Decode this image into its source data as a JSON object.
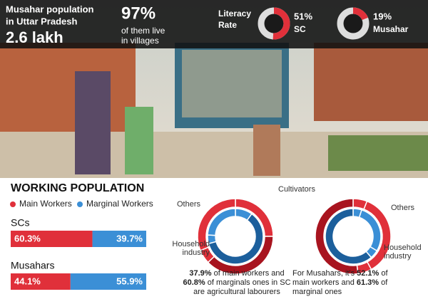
{
  "header": {
    "population_label": [
      "Musahar population",
      "in Uttar Pradesh"
    ],
    "population_value": "2.6 lakh",
    "villages_value": "97%",
    "villages_label": [
      "of them live",
      "in villages"
    ],
    "literacy_label": [
      "Literacy",
      "Rate"
    ]
  },
  "chart_data": [
    {
      "type": "donut",
      "categories": [
        "SC"
      ],
      "values": [
        51
      ],
      "value_labels": [
        "51%"
      ],
      "color": "#e0303a"
    },
    {
      "type": "donut",
      "categories": [
        "Musahar"
      ],
      "values": [
        19
      ],
      "value_labels": [
        "19%"
      ],
      "color": "#e0303a"
    },
    {
      "type": "stacked-bar",
      "title": "WORKING POPULATION",
      "categories": [
        "SCs",
        "Musahars"
      ],
      "xlim": [
        0,
        100
      ],
      "series": [
        {
          "name": "Main Workers",
          "color": "#e0303a",
          "values": [
            60.3,
            44.1
          ],
          "value_labels": [
            "60.3%",
            "44.1%"
          ]
        },
        {
          "name": "Marginal Workers",
          "color": "#3b8fd6",
          "values": [
            39.7,
            55.9
          ],
          "value_labels": [
            "39.7%",
            "55.9%"
          ]
        }
      ]
    },
    {
      "type": "nested-donut",
      "categories": [
        "Cultivators",
        null,
        "Household industry",
        "Others"
      ],
      "series": [
        {
          "color": "#e0303a",
          "values": [
            25,
            37.9,
            6,
            31.1
          ],
          "value_labels": [
            null,
            "37.9%",
            null,
            null
          ]
        },
        {
          "color": "#3b8fd6",
          "values": [
            10,
            60.8,
            5,
            24.2
          ],
          "value_labels": [
            null,
            "60.8%",
            null,
            null
          ]
        }
      ],
      "caption": [
        "of main workers and",
        "of marginals ones in SC",
        "are agricultural labourers"
      ]
    },
    {
      "type": "nested-donut",
      "categories": [
        null,
        "Others",
        "Household industry",
        null
      ],
      "series": [
        {
          "color": "#e0303a",
          "values": [
            6,
            36,
            5.9,
            52.1
          ],
          "value_labels": [
            null,
            null,
            null,
            "52.1%"
          ]
        },
        {
          "color": "#3b8fd6",
          "values": [
            5,
            28.7,
            5,
            61.3
          ],
          "value_labels": [
            null,
            null,
            null,
            "61.3%"
          ]
        }
      ],
      "caption": [
        "For Musahars, it's",
        "of",
        "main workers and",
        "of",
        "marginal ones"
      ]
    }
  ]
}
